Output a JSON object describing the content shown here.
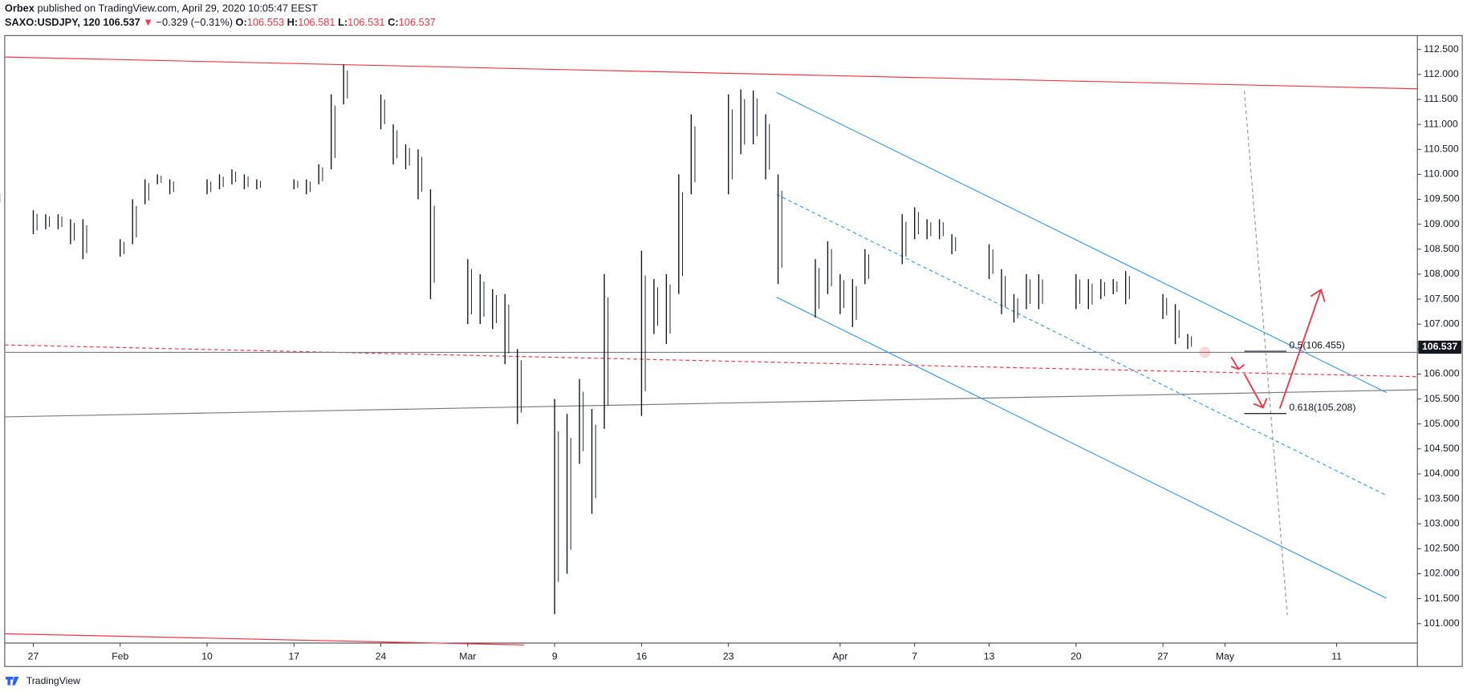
{
  "header": {
    "author": "Orbex",
    "published": "published on TradingView.com, April 29, 2020 10:05:47 EEST",
    "symbol": "SAXO:USDJPY, 120",
    "last": "106.537",
    "arrow": "▼",
    "change": "−0.329 (−0.31%)",
    "open_label": "O:",
    "open": "106.553",
    "high_label": "H:",
    "high": "106.581",
    "low_label": "L:",
    "low": "106.531",
    "close_label": "C:",
    "close": "106.537"
  },
  "footer": {
    "brand": "TradingView"
  },
  "chart_data": {
    "type": "range_bar",
    "color": "#131722",
    "grid": false,
    "x": [
      24,
      27,
      28,
      29,
      30,
      31,
      34,
      35,
      36,
      37,
      38,
      41,
      42,
      43,
      44,
      45,
      48,
      49,
      50,
      51,
      52,
      55,
      56,
      57,
      58,
      59,
      62,
      63,
      64,
      65,
      66,
      69,
      70,
      71,
      72,
      73,
      76,
      77,
      78,
      79,
      80,
      83,
      84,
      85,
      86,
      87,
      90,
      91,
      92,
      93,
      94,
      97,
      98,
      99,
      100,
      101,
      104,
      105,
      106,
      107,
      108,
      111,
      112,
      113,
      114,
      115,
      118,
      119,
      120
    ],
    "high": [
      109.65,
      109.28,
      109.2,
      109.2,
      109.1,
      109.1,
      108.7,
      109.5,
      109.9,
      110.0,
      109.9,
      109.9,
      110.0,
      110.1,
      110.0,
      109.9,
      109.9,
      109.9,
      110.2,
      111.6,
      112.2,
      111.6,
      111.0,
      110.6,
      110.5,
      109.7,
      108.3,
      108.0,
      107.7,
      107.6,
      106.5,
      105.5,
      105.2,
      105.9,
      105.3,
      108.0,
      108.47,
      107.9,
      108.0,
      110.0,
      111.2,
      111.6,
      111.7,
      111.68,
      111.2,
      110.0,
      108.3,
      108.66,
      108.0,
      107.9,
      108.5,
      109.2,
      109.34,
      109.1,
      109.1,
      108.8,
      108.6,
      108.1,
      107.6,
      108.0,
      108.0,
      108.0,
      107.9,
      107.9,
      107.9,
      108.06,
      107.6,
      107.4,
      106.8
    ],
    "low": [
      109.4,
      108.8,
      108.9,
      108.9,
      108.6,
      108.3,
      108.35,
      108.6,
      109.4,
      109.8,
      109.6,
      109.6,
      109.7,
      109.8,
      109.7,
      109.7,
      109.7,
      109.6,
      109.8,
      110.1,
      111.4,
      110.9,
      110.2,
      110.1,
      109.5,
      107.5,
      107.0,
      107.0,
      106.9,
      106.2,
      105.0,
      101.19,
      102.0,
      104.2,
      103.2,
      104.9,
      105.16,
      106.8,
      106.6,
      107.6,
      109.6,
      109.6,
      110.4,
      110.6,
      109.9,
      107.8,
      107.13,
      107.6,
      107.2,
      106.94,
      107.8,
      108.2,
      108.7,
      108.7,
      108.7,
      108.4,
      107.9,
      107.2,
      107.03,
      107.3,
      107.3,
      107.3,
      107.3,
      107.5,
      107.6,
      107.4,
      107.1,
      106.6,
      106.5
    ],
    "xlim": [
      24.7,
      138.5
    ],
    "xticks": [
      27,
      {
        "value": 34,
        "label": "Feb"
      },
      {
        "value": 41,
        "label": "10"
      },
      {
        "value": 48,
        "label": "17"
      },
      {
        "value": 55,
        "label": "24"
      },
      {
        "value": 62,
        "label": "Mar"
      },
      {
        "value": 69,
        "label": "9"
      },
      {
        "value": 76,
        "label": "16"
      },
      {
        "value": 83,
        "label": "23"
      },
      {
        "value": 92,
        "label": "Apr"
      },
      {
        "value": 98,
        "label": "7"
      },
      {
        "value": 104,
        "label": "13"
      },
      {
        "value": 111,
        "label": "20"
      },
      {
        "value": 118,
        "label": "27"
      },
      {
        "value": 123,
        "label": "May"
      },
      {
        "value": 132,
        "label": "11"
      }
    ],
    "ylim": [
      100.61,
      112.78
    ],
    "yticks": [
      {
        "value": 101,
        "label": "101.000"
      },
      {
        "value": 101.5,
        "label": "101.500"
      },
      {
        "value": 102,
        "label": "102.000"
      },
      {
        "value": 102.5,
        "label": "102.500"
      },
      {
        "value": 103,
        "label": "103.000"
      },
      {
        "value": 103.5,
        "label": "103.500"
      },
      {
        "value": 104,
        "label": "104.000"
      },
      {
        "value": 104.5,
        "label": "104.500"
      },
      {
        "value": 105,
        "label": "105.000"
      },
      {
        "value": 105.5,
        "label": "105.500"
      },
      {
        "value": 106,
        "label": "106.000"
      },
      {
        "value": 106.5,
        "label": "106.500"
      },
      {
        "value": 107,
        "label": "107.000"
      },
      {
        "value": 107.5,
        "label": "107.500"
      },
      {
        "value": 108,
        "label": "108.000"
      },
      {
        "value": 108.5,
        "label": "108.500"
      },
      {
        "value": 109,
        "label": "109.000"
      },
      {
        "value": 109.5,
        "label": "109.500"
      },
      {
        "value": 110,
        "label": "110.000"
      },
      {
        "value": 110.5,
        "label": "110.500"
      },
      {
        "value": 111,
        "label": "111.000"
      },
      {
        "value": 111.5,
        "label": "111.500"
      },
      {
        "value": 112,
        "label": "112.000"
      },
      {
        "value": 112.5,
        "label": "112.500"
      }
    ],
    "last_price": 106.537,
    "fib_levels": [
      {
        "value": 106.455,
        "label": "0.5(106.455)"
      },
      {
        "value": 105.208,
        "label": "0.618(105.208)"
      }
    ]
  }
}
